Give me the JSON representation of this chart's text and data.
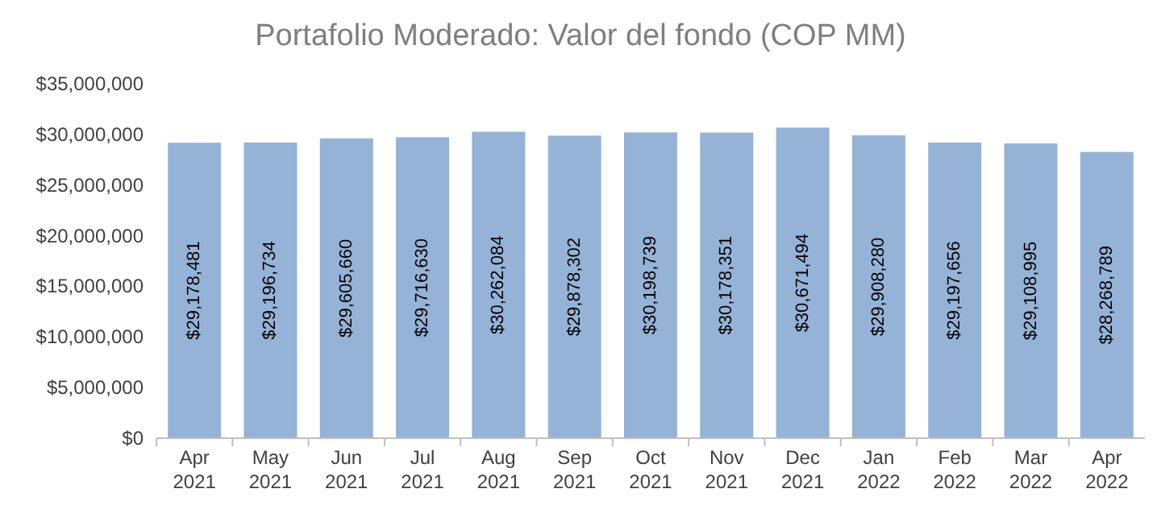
{
  "chart_data": {
    "type": "bar",
    "title": "Portafolio Moderado: Valor del fondo (COP MM)",
    "categories": [
      "Apr 2021",
      "May 2021",
      "Jun 2021",
      "Jul 2021",
      "Aug 2021",
      "Sep 2021",
      "Oct 2021",
      "Nov 2021",
      "Dec 2021",
      "Jan 2022",
      "Feb 2022",
      "Mar 2022",
      "Apr 2022"
    ],
    "values": [
      29178481,
      29196734,
      29605660,
      29716630,
      30262084,
      29878302,
      30198739,
      30178351,
      30671494,
      29908280,
      29197656,
      29108995,
      28268789
    ],
    "value_labels": [
      "$29,178,481",
      "$29,196,734",
      "$29,605,660",
      "$29,716,630",
      "$30,262,084",
      "$29,878,302",
      "$30,198,739",
      "$30,178,351",
      "$30,671,494",
      "$29,908,280",
      "$29,197,656",
      "$29,108,995",
      "$28,268,789"
    ],
    "color": "#95b3d7",
    "ylim": [
      0,
      35000000
    ],
    "yticks": [
      {
        "value": 0,
        "label": "$0"
      },
      {
        "value": 5000000,
        "label": "$5,000,000"
      },
      {
        "value": 10000000,
        "label": "$10,000,000"
      },
      {
        "value": 15000000,
        "label": "$15,000,000"
      },
      {
        "value": 20000000,
        "label": "$20,000,000"
      },
      {
        "value": 25000000,
        "label": "$25,000,000"
      },
      {
        "value": 30000000,
        "label": "$30,000,000"
      },
      {
        "value": 35000000,
        "label": "$35,000,000"
      }
    ],
    "grid": false
  }
}
